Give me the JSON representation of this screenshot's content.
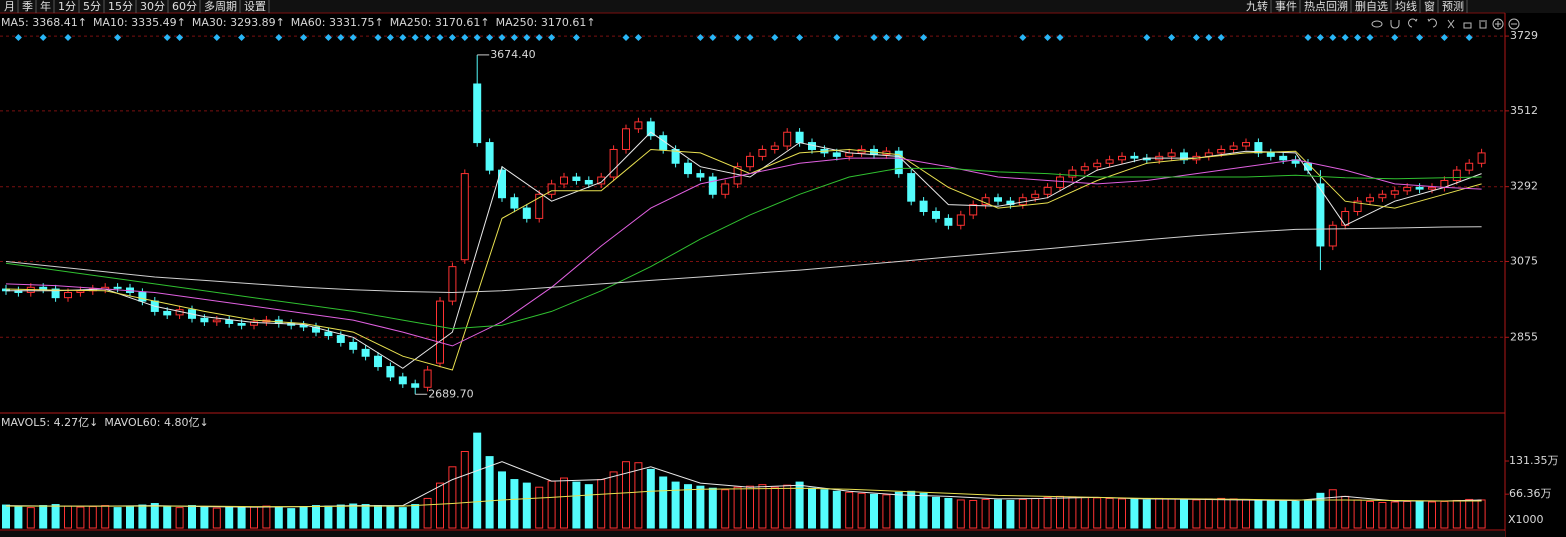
{
  "toolbar": {
    "tabs": [
      "月",
      "季",
      "年",
      "1分",
      "5分",
      "15分",
      "30分",
      "60分",
      "多周期",
      "设置"
    ],
    "buttons": [
      "九转",
      "事件",
      "热点回溯",
      "删自选",
      "均线",
      "窗",
      "预测"
    ]
  },
  "chart_data": {
    "type": "candlestick",
    "open": [
      2995,
      2990,
      2985,
      3000,
      2995,
      2970,
      2985,
      2990,
      2995,
      3000,
      2998,
      2985,
      2960,
      2930,
      2920,
      2935,
      2910,
      2900,
      2905,
      2895,
      2890,
      2900,
      2905,
      2895,
      2890,
      2885,
      2870,
      2860,
      2840,
      2820,
      2800,
      2770,
      2740,
      2720,
      2710,
      2780,
      2960,
      3080,
      3590,
      3420,
      3340,
      3260,
      3230,
      3200,
      3270,
      3300,
      3320,
      3310,
      3300,
      3320,
      3400,
      3460,
      3480,
      3440,
      3400,
      3360,
      3330,
      3320,
      3270,
      3300,
      3350,
      3380,
      3400,
      3410,
      3450,
      3420,
      3400,
      3390,
      3380,
      3390,
      3400,
      3385,
      3395,
      3330,
      3250,
      3220,
      3200,
      3180,
      3210,
      3240,
      3260,
      3250,
      3240,
      3260,
      3270,
      3290,
      3320,
      3340,
      3350,
      3360,
      3370,
      3380,
      3375,
      3370,
      3380,
      3390,
      3370,
      3380,
      3390,
      3400,
      3410,
      3420,
      3390,
      3380,
      3370,
      3360,
      3300,
      3120,
      3180,
      3220,
      3250,
      3260,
      3270,
      3280,
      3290,
      3285,
      3290,
      3310,
      3340,
      3360
    ],
    "high": [
      3007,
      3002,
      3012,
      3012,
      3007,
      2997,
      3002,
      3007,
      3012,
      3012,
      3010,
      2997,
      2972,
      2942,
      2947,
      2947,
      2922,
      2917,
      2917,
      2907,
      2912,
      2917,
      2917,
      2907,
      2902,
      2897,
      2882,
      2872,
      2852,
      2832,
      2812,
      2782,
      2752,
      2732,
      2772,
      2972,
      3072,
      3342,
      3674.4,
      3432,
      3352,
      3272,
      3242,
      3282,
      3312,
      3332,
      3332,
      3322,
      3332,
      3412,
      3472,
      3492,
      3492,
      3452,
      3412,
      3372,
      3342,
      3332,
      3312,
      3362,
      3392,
      3412,
      3422,
      3462,
      3462,
      3432,
      3412,
      3402,
      3402,
      3412,
      3412,
      3407,
      3407,
      3342,
      3262,
      3232,
      3212,
      3222,
      3252,
      3272,
      3272,
      3262,
      3272,
      3282,
      3302,
      3332,
      3352,
      3362,
      3372,
      3382,
      3392,
      3392,
      3387,
      3392,
      3402,
      3402,
      3392,
      3402,
      3412,
      3422,
      3432,
      3432,
      3402,
      3392,
      3382,
      3372,
      3340,
      3192,
      3232,
      3262,
      3272,
      3282,
      3292,
      3302,
      3302,
      3302,
      3322,
      3352,
      3372,
      3402
    ],
    "low": [
      2978,
      2973,
      2973,
      2983,
      2958,
      2958,
      2973,
      2978,
      2983,
      2986,
      2973,
      2948,
      2918,
      2908,
      2908,
      2898,
      2888,
      2888,
      2883,
      2878,
      2878,
      2888,
      2883,
      2878,
      2873,
      2858,
      2848,
      2828,
      2808,
      2788,
      2758,
      2728,
      2708,
      2689.7,
      2698,
      2768,
      2948,
      3068,
      3408,
      3328,
      3248,
      3218,
      3188,
      3188,
      3258,
      3288,
      3298,
      3288,
      3288,
      3308,
      3388,
      3448,
      3428,
      3388,
      3348,
      3318,
      3308,
      3258,
      3258,
      3288,
      3338,
      3368,
      3388,
      3398,
      3408,
      3388,
      3378,
      3368,
      3368,
      3378,
      3373,
      3373,
      3318,
      3238,
      3208,
      3188,
      3168,
      3168,
      3198,
      3228,
      3238,
      3228,
      3228,
      3248,
      3258,
      3278,
      3308,
      3328,
      3338,
      3348,
      3358,
      3363,
      3358,
      3358,
      3368,
      3358,
      3358,
      3368,
      3378,
      3388,
      3398,
      3378,
      3368,
      3358,
      3348,
      3328,
      3050,
      3108,
      3168,
      3208,
      3238,
      3248,
      3258,
      3268,
      3273,
      3273,
      3278,
      3298,
      3328,
      3348
    ],
    "close": [
      2990,
      2985,
      3000,
      2995,
      2970,
      2985,
      2990,
      2995,
      3000,
      2998,
      2985,
      2960,
      2930,
      2920,
      2935,
      2910,
      2900,
      2905,
      2895,
      2890,
      2900,
      2905,
      2895,
      2890,
      2885,
      2870,
      2860,
      2840,
      2820,
      2800,
      2770,
      2740,
      2720,
      2710,
      2760,
      2960,
      3060,
      3330,
      3420,
      3340,
      3260,
      3230,
      3200,
      3270,
      3300,
      3320,
      3310,
      3300,
      3320,
      3400,
      3460,
      3480,
      3440,
      3400,
      3360,
      3330,
      3320,
      3270,
      3300,
      3350,
      3380,
      3400,
      3410,
      3450,
      3420,
      3400,
      3390,
      3380,
      3390,
      3400,
      3385,
      3395,
      3330,
      3250,
      3220,
      3200,
      3180,
      3210,
      3240,
      3260,
      3250,
      3240,
      3260,
      3270,
      3290,
      3320,
      3340,
      3350,
      3360,
      3370,
      3380,
      3375,
      3370,
      3380,
      3390,
      3370,
      3380,
      3390,
      3400,
      3410,
      3420,
      3390,
      3380,
      3370,
      3360,
      3340,
      3120,
      3180,
      3220,
      3250,
      3260,
      3270,
      3280,
      3290,
      3285,
      3290,
      3310,
      3340,
      3360,
      3390
    ],
    "up_color": "#ff3232",
    "down_color": "#54fcfc",
    "ylim": [
      2644,
      3796
    ],
    "yticks": [
      3729,
      3512,
      3292,
      3075,
      2855
    ],
    "grid": true,
    "signals": [
      1,
      3,
      5,
      9,
      13,
      14,
      17,
      19,
      22,
      24,
      26,
      27,
      28,
      30,
      31,
      32,
      33,
      34,
      35,
      36,
      37,
      38,
      39,
      40,
      41,
      42,
      43,
      44,
      46,
      50,
      51,
      56,
      57,
      59,
      60,
      62,
      64,
      67,
      70,
      71,
      72,
      74,
      82,
      84,
      85,
      92,
      94,
      96,
      97,
      98,
      105,
      106,
      107,
      108,
      109,
      110,
      112,
      114,
      116,
      118
    ],
    "signal_color": "#29b6f6",
    "annotations": [
      {
        "index": 38,
        "label": "3674.40",
        "at": "high"
      },
      {
        "index": 33,
        "label": "2689.70",
        "at": "low"
      }
    ],
    "ma_x": [
      0,
      4,
      8,
      12,
      16,
      20,
      24,
      28,
      32,
      36,
      40,
      44,
      48,
      52,
      56,
      60,
      64,
      68,
      72,
      76,
      80,
      84,
      88,
      92,
      96,
      100,
      104,
      108,
      112,
      116,
      119
    ],
    "ma_lines": [
      {
        "color": "#e8e8e8",
        "values": [
          2990,
          2990,
          2995,
          2945,
          2915,
          2898,
          2892,
          2855,
          2765,
          2870,
          3350,
          3250,
          3305,
          3450,
          3350,
          3320,
          3420,
          3390,
          3380,
          3240,
          3235,
          3260,
          3340,
          3375,
          3375,
          3395,
          3390,
          3180,
          3250,
          3290,
          3330
        ]
      },
      {
        "color": "#e8e050",
        "values": [
          2995,
          2992,
          2990,
          2960,
          2930,
          2905,
          2895,
          2870,
          2800,
          2760,
          3200,
          3280,
          3280,
          3400,
          3390,
          3330,
          3390,
          3400,
          3385,
          3290,
          3230,
          3245,
          3310,
          3360,
          3375,
          3390,
          3395,
          3250,
          3230,
          3270,
          3300
        ]
      },
      {
        "color": "#e060e0",
        "values": [
          3010,
          3005,
          2995,
          2985,
          2965,
          2945,
          2925,
          2905,
          2870,
          2830,
          2900,
          3000,
          3120,
          3230,
          3300,
          3330,
          3360,
          3375,
          3375,
          3350,
          3320,
          3310,
          3300,
          3310,
          3330,
          3350,
          3370,
          3340,
          3300,
          3290,
          3285
        ]
      },
      {
        "color": "#30c030",
        "values": [
          3070,
          3050,
          3030,
          3010,
          2990,
          2970,
          2950,
          2930,
          2905,
          2880,
          2890,
          2930,
          2990,
          3060,
          3140,
          3210,
          3270,
          3320,
          3345,
          3345,
          3335,
          3330,
          3320,
          3320,
          3320,
          3320,
          3325,
          3318,
          3315,
          3318,
          3320
        ]
      },
      {
        "color": "#d0d0d0",
        "values": [
          3075,
          3060,
          3045,
          3030,
          3020,
          3010,
          3000,
          2993,
          2988,
          2985,
          2990,
          3000,
          3010,
          3020,
          3030,
          3040,
          3050,
          3062,
          3075,
          3088,
          3100,
          3112,
          3125,
          3138,
          3150,
          3160,
          3168,
          3170,
          3172,
          3175,
          3176
        ]
      }
    ],
    "ma_legend": [
      {
        "label": "MA5: 3368.41",
        "arrow": "↑",
        "color": "#e8e8e8"
      },
      {
        "label": "MA10: 3335.49",
        "arrow": "↑",
        "color": "#e8e050"
      },
      {
        "label": "MA30: 3293.89",
        "arrow": "↑",
        "color": "#e060e0"
      },
      {
        "label": "MA60: 3331.75",
        "arrow": "↑",
        "color": "#30c030"
      },
      {
        "label": "MA250: 3170.61",
        "arrow": "↑",
        "color": "#4fd0ff"
      },
      {
        "label": "MA250: 3170.61",
        "arrow": "↑",
        "color": "#e8e8e8"
      }
    ],
    "arrow_color": "#ff3232",
    "volume": {
      "values": [
        45,
        42,
        40,
        44,
        46,
        43,
        41,
        42,
        44,
        40,
        43,
        45,
        48,
        42,
        40,
        44,
        41,
        39,
        42,
        40,
        41,
        43,
        40,
        38,
        42,
        44,
        43,
        45,
        47,
        46,
        44,
        42,
        40,
        46,
        58,
        88,
        120,
        150,
        186,
        140,
        110,
        95,
        88,
        80,
        92,
        98,
        90,
        85,
        95,
        110,
        130,
        128,
        115,
        100,
        90,
        85,
        82,
        78,
        75,
        80,
        82,
        85,
        80,
        84,
        90,
        78,
        75,
        72,
        70,
        68,
        66,
        65,
        70,
        72,
        68,
        60,
        58,
        55,
        54,
        56,
        55,
        54,
        56,
        58,
        60,
        62,
        61,
        60,
        59,
        58,
        57,
        56,
        55,
        58,
        57,
        56,
        55,
        57,
        58,
        57,
        56,
        55,
        54,
        53,
        52,
        55,
        68,
        75,
        62,
        55,
        52,
        50,
        51,
        52,
        53,
        51,
        52,
        54,
        56,
        55
      ],
      "ylim": [
        0,
        215.7
      ],
      "yticks": [
        {
          "value": 131.35,
          "label": "131.35万"
        },
        {
          "value": 66.36,
          "label": "66.36万"
        }
      ],
      "unit": "X1000",
      "ma_lines": [
        {
          "color": "#e8e8e8",
          "values": [
            44,
            43,
            43,
            44,
            42,
            41,
            42,
            44,
            44,
            95,
            130,
            92,
            95,
            120,
            88,
            80,
            84,
            72,
            65,
            62,
            57,
            58,
            60,
            57,
            56,
            55,
            54,
            62,
            53,
            53,
            55
          ]
        },
        {
          "color": "#e8e050",
          "values": [
            43,
            43,
            43,
            43,
            43,
            42,
            42,
            43,
            43,
            48,
            55,
            60,
            66,
            72,
            76,
            77,
            78,
            76,
            72,
            68,
            64,
            62,
            60,
            58,
            57,
            56,
            55,
            55,
            54,
            53,
            53
          ]
        }
      ],
      "legend": [
        {
          "label": "MAVOL5: 4.27亿",
          "arrow": "↓",
          "color": "#e8e050"
        },
        {
          "label": "MAVOL60: 4.80亿",
          "arrow": "↓",
          "color": "#e8e8e8"
        }
      ],
      "arrow_color": "#54fcfc"
    }
  }
}
